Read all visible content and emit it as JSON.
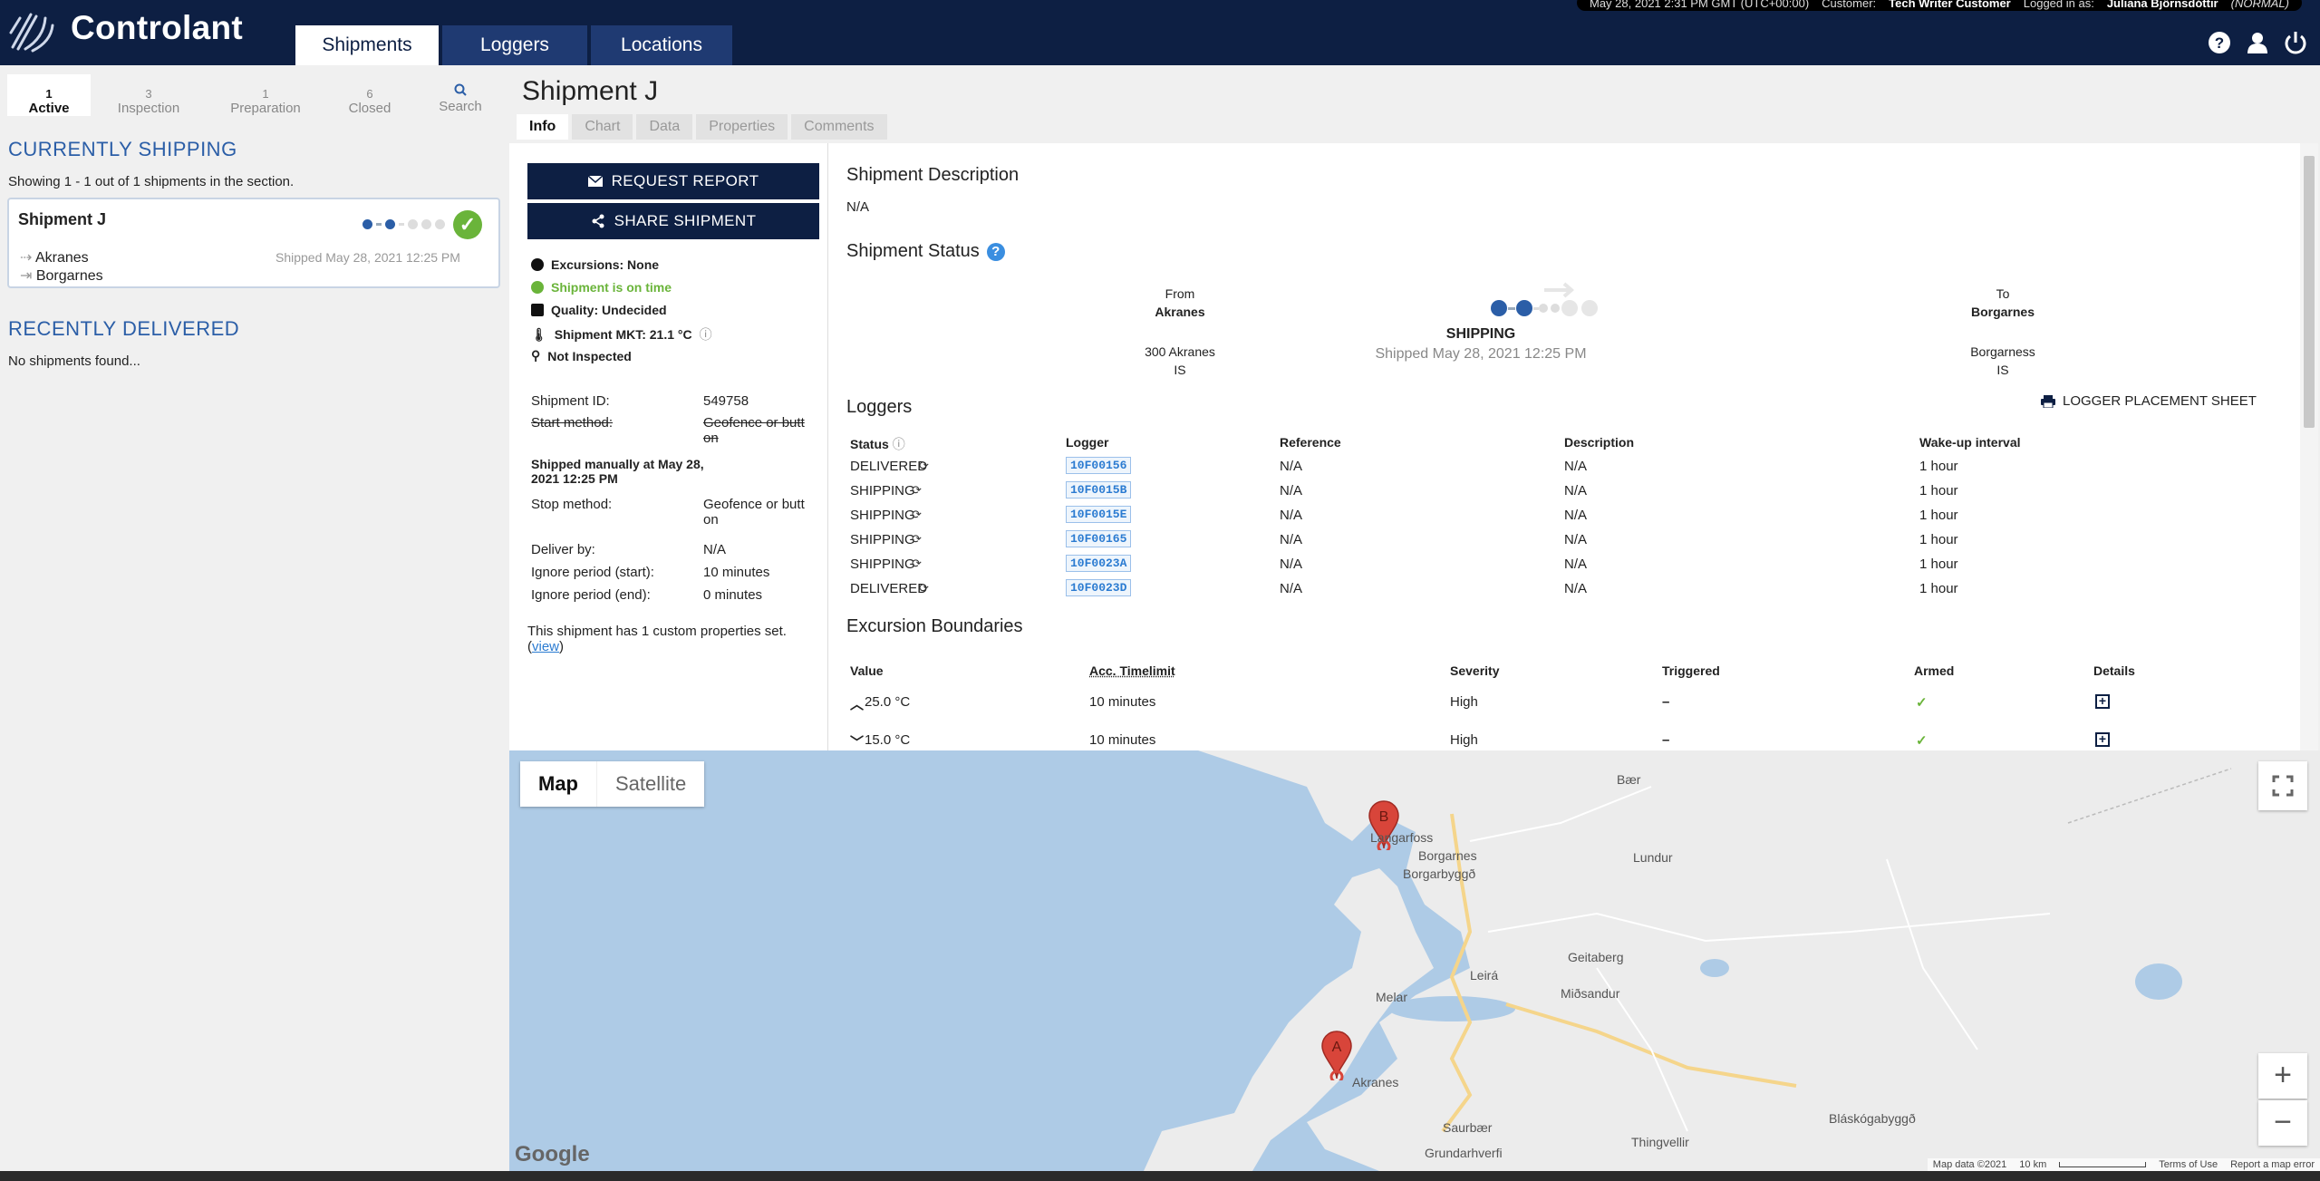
{
  "app": {
    "brand": "Controlant"
  },
  "topbar": {
    "tabs": [
      "Shipments",
      "Loggers",
      "Locations"
    ],
    "datetime": "May 28, 2021 2:31 PM GMT (UTC+00:00)",
    "customer_label": "Customer:",
    "customer": "Tech Writer Customer",
    "logged_in_label": "Logged in as:",
    "user": "Juliana Björnsdóttir",
    "role": "(NORMAL)"
  },
  "sidebar": {
    "tabs": [
      {
        "count": "1",
        "label": "Active"
      },
      {
        "count": "3",
        "label": "Inspection"
      },
      {
        "count": "1",
        "label": "Preparation"
      },
      {
        "count": "6",
        "label": "Closed"
      },
      {
        "count": "",
        "label": "Search"
      }
    ],
    "current_heading": "CURRENTLY SHIPPING",
    "showing_text": "Showing 1 - 1 out of 1 shipments in the section.",
    "card": {
      "title": "Shipment J",
      "from": "Akranes",
      "to": "Borgarnes",
      "shipped": "Shipped May 28, 2021 12:25 PM"
    },
    "delivered_heading": "RECENTLY DELIVERED",
    "no_shipments": "No shipments found..."
  },
  "shipment": {
    "title": "Shipment J",
    "tabs": [
      "Info",
      "Chart",
      "Data",
      "Properties",
      "Comments"
    ],
    "request_report": "REQUEST REPORT",
    "share_shipment": "SHARE SHIPMENT",
    "excursions": "Excursions: None",
    "on_time": "Shipment is on time",
    "quality": "Quality: Undecided",
    "mkt": "Shipment MKT: 21.1 °C",
    "inspected": "Not Inspected",
    "id_label": "Shipment ID:",
    "id_value": "549758",
    "start_label": "Start method:",
    "start_value": "Geofence or butt on",
    "shipped_manually": "Shipped manually at May 28, 2021 12:25 PM",
    "stop_label": "Stop method:",
    "stop_value": "Geofence or butt on",
    "deliver_label": "Deliver by:",
    "deliver_value": "N/A",
    "ignore_start_label": "Ignore period (start):",
    "ignore_start_value": "10 minutes",
    "ignore_end_label": "Ignore period (end):",
    "ignore_end_value": "0 minutes",
    "custom_props": "This shipment has 1 custom properties set.",
    "view_link": "view",
    "description_heading": "Shipment Description",
    "description": "N/A",
    "status_heading": "Shipment Status",
    "from_label": "From",
    "from_name": "Akranes",
    "from_addr": "300 Akranes",
    "from_country": "IS",
    "state": "SHIPPING",
    "state_shipped": "Shipped May 28, 2021 12:25 PM",
    "to_label": "To",
    "to_name": "Borgarnes",
    "to_addr": "Borgarness",
    "to_country": "IS",
    "loggers_heading": "Loggers",
    "logger_sheet": "LOGGER PLACEMENT SHEET",
    "logger_cols": [
      "Status",
      "Logger",
      "Reference",
      "Description",
      "Wake-up interval"
    ],
    "loggers": [
      {
        "status": "DELIVERED",
        "id": "10F00156",
        "ref": "N/A",
        "desc": "N/A",
        "interval": "1 hour"
      },
      {
        "status": "SHIPPING",
        "id": "10F0015B",
        "ref": "N/A",
        "desc": "N/A",
        "interval": "1 hour"
      },
      {
        "status": "SHIPPING",
        "id": "10F0015E",
        "ref": "N/A",
        "desc": "N/A",
        "interval": "1 hour"
      },
      {
        "status": "SHIPPING",
        "id": "10F00165",
        "ref": "N/A",
        "desc": "N/A",
        "interval": "1 hour"
      },
      {
        "status": "SHIPPING",
        "id": "10F0023A",
        "ref": "N/A",
        "desc": "N/A",
        "interval": "1 hour"
      },
      {
        "status": "DELIVERED",
        "id": "10F0023D",
        "ref": "N/A",
        "desc": "N/A",
        "interval": "1 hour"
      }
    ],
    "boundaries_heading": "Excursion Boundaries",
    "boundary_cols": [
      "Value",
      "Acc. Timelimit",
      "Severity",
      "Triggered",
      "Armed",
      "Details"
    ],
    "boundaries": [
      {
        "value": "25.0 °C",
        "dir": "up",
        "limit": "10 minutes",
        "severity": "High",
        "triggered": "–"
      },
      {
        "value": "15.0 °C",
        "dir": "down",
        "limit": "10 minutes",
        "severity": "High",
        "triggered": "–"
      }
    ]
  },
  "map": {
    "type_map": "Map",
    "type_satellite": "Satellite",
    "zoom_in": "+",
    "zoom_out": "−",
    "google": "Google",
    "attribution": "Map data ©2021",
    "scale": "10 km",
    "terms": "Terms of Use",
    "report": "Report a map error",
    "places": [
      "Langarfoss",
      "Borgarnes",
      "Borgarbyggð",
      "Lundur",
      "Bær",
      "Geitaberg",
      "Leirá",
      "Miðsandur",
      "Melar",
      "Akranes",
      "Saurbær",
      "Grundarhverfi",
      "Thingvellir",
      "Bláskógabyggð"
    ],
    "marker_a": "A",
    "marker_b": "B"
  },
  "colors": {
    "navy": "#0d1f43",
    "accent": "#2b5ea7",
    "green": "#6ab43a",
    "water": "#aecbe6"
  }
}
